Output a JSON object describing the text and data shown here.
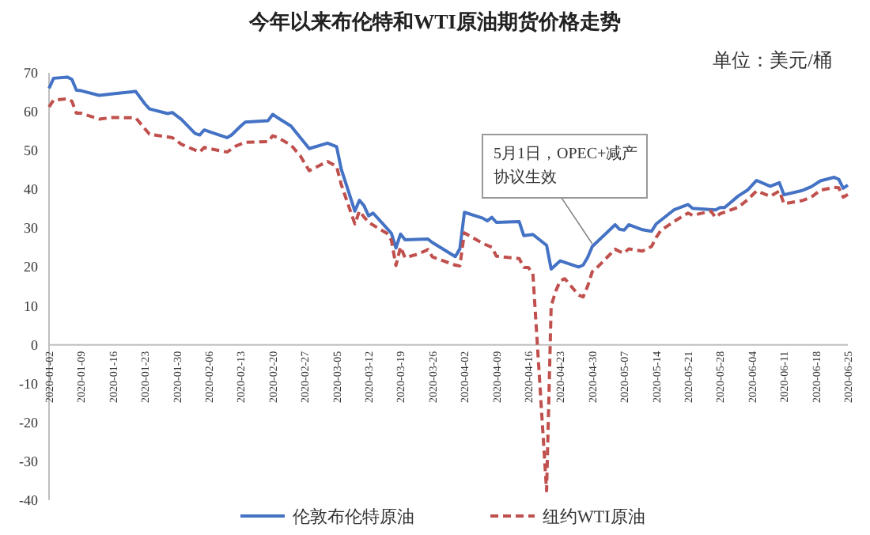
{
  "chart_data": {
    "type": "line",
    "title": "今年以来布伦特和WTI原油期货价格走势",
    "annotations": [
      "单位：美元/桶",
      {
        "text": "5月1日，OPEC+减产协议生效",
        "x": "2020-04-30",
        "y": 26
      }
    ],
    "xlim": [
      "2020-01-02",
      "2020-06-25"
    ],
    "xticks": [
      "2020-01-02",
      "2020-01-09",
      "2020-01-16",
      "2020-01-23",
      "2020-01-30",
      "2020-02-06",
      "2020-02-13",
      "2020-02-20",
      "2020-02-27",
      "2020-03-05",
      "2020-03-12",
      "2020-03-19",
      "2020-03-26",
      "2020-04-02",
      "2020-04-09",
      "2020-04-16",
      "2020-04-23",
      "2020-04-30",
      "2020-05-07",
      "2020-05-14",
      "2020-05-21",
      "2020-05-28",
      "2020-06-04",
      "2020-06-11",
      "2020-06-18",
      "2020-06-25"
    ],
    "ylim": [
      -40,
      70
    ],
    "yticks": [
      -40,
      -30,
      -20,
      -10,
      0,
      10,
      20,
      30,
      40,
      50,
      60,
      70
    ],
    "grid": false,
    "legend": "bottom",
    "series": [
      {
        "name": "伦敦布伦特原油",
        "color": "#4472c4",
        "line_style": "solid",
        "x": [
          "2020-01-02",
          "2020-01-03",
          "2020-01-06",
          "2020-01-07",
          "2020-01-08",
          "2020-01-09",
          "2020-01-13",
          "2020-01-16",
          "2020-01-21",
          "2020-01-23",
          "2020-01-24",
          "2020-01-28",
          "2020-01-29",
          "2020-01-31",
          "2020-02-03",
          "2020-02-04",
          "2020-02-05",
          "2020-02-07",
          "2020-02-10",
          "2020-02-11",
          "2020-02-13",
          "2020-02-14",
          "2020-02-19",
          "2020-02-20",
          "2020-02-21",
          "2020-02-24",
          "2020-02-26",
          "2020-02-28",
          "2020-03-03",
          "2020-03-05",
          "2020-03-06",
          "2020-03-09",
          "2020-03-10",
          "2020-03-11",
          "2020-03-12",
          "2020-03-13",
          "2020-03-16",
          "2020-03-17",
          "2020-03-18",
          "2020-03-19",
          "2020-03-20",
          "2020-03-25",
          "2020-03-26",
          "2020-03-31",
          "2020-04-01",
          "2020-04-02",
          "2020-04-06",
          "2020-04-07",
          "2020-04-08",
          "2020-04-09",
          "2020-04-14",
          "2020-04-15",
          "2020-04-17",
          "2020-04-20",
          "2020-04-21",
          "2020-04-23",
          "2020-04-27",
          "2020-04-28",
          "2020-04-29",
          "2020-04-30",
          "2020-05-01",
          "2020-05-05",
          "2020-05-06",
          "2020-05-07",
          "2020-05-08",
          "2020-05-11",
          "2020-05-13",
          "2020-05-14",
          "2020-05-18",
          "2020-05-21",
          "2020-05-22",
          "2020-05-27",
          "2020-05-28",
          "2020-05-29",
          "2020-06-01",
          "2020-06-03",
          "2020-06-05",
          "2020-06-08",
          "2020-06-10",
          "2020-06-11",
          "2020-06-15",
          "2020-06-17",
          "2020-06-19",
          "2020-06-22",
          "2020-06-23",
          "2020-06-24",
          "2020-06-25"
        ],
        "values": [
          66,
          68.6,
          68.9,
          68.3,
          65.5,
          65.4,
          64.2,
          64.6,
          65.2,
          62,
          60.7,
          59.5,
          59.8,
          58,
          54.4,
          54,
          55.3,
          54.5,
          53.3,
          54,
          56.3,
          57.3,
          57.7,
          59.3,
          58.5,
          56.3,
          53.4,
          50.5,
          51.9,
          51,
          45.3,
          34.4,
          37.2,
          35.8,
          33.2,
          33.9,
          30,
          28.7,
          24.9,
          28.5,
          27,
          27.2,
          26.3,
          22.7,
          24.7,
          34.1,
          32.6,
          31.9,
          32.8,
          31.5,
          31.7,
          28.1,
          28.4,
          25.6,
          19.5,
          21.6,
          20,
          20.5,
          22.5,
          25.3,
          26.4,
          30.9,
          29.7,
          29.5,
          30.9,
          29.6,
          29.2,
          31.1,
          34.8,
          36.1,
          35.1,
          34.7,
          35.3,
          35.3,
          38.3,
          39.8,
          42.3,
          40.8,
          41.7,
          38.6,
          39.7,
          40.7,
          42.2,
          43.1,
          42.6,
          40.3,
          41.1
        ]
      },
      {
        "name": "纽约WTI原油",
        "color": "#c0504d",
        "line_style": "dashed",
        "x": [
          "2020-01-02",
          "2020-01-03",
          "2020-01-06",
          "2020-01-07",
          "2020-01-08",
          "2020-01-09",
          "2020-01-13",
          "2020-01-16",
          "2020-01-21",
          "2020-01-23",
          "2020-01-24",
          "2020-01-28",
          "2020-01-29",
          "2020-01-31",
          "2020-02-03",
          "2020-02-04",
          "2020-02-05",
          "2020-02-07",
          "2020-02-10",
          "2020-02-12",
          "2020-02-14",
          "2020-02-19",
          "2020-02-20",
          "2020-02-21",
          "2020-02-24",
          "2020-02-26",
          "2020-02-28",
          "2020-03-03",
          "2020-03-05",
          "2020-03-06",
          "2020-03-09",
          "2020-03-10",
          "2020-03-11",
          "2020-03-12",
          "2020-03-16",
          "2020-03-17",
          "2020-03-18",
          "2020-03-19",
          "2020-03-20",
          "2020-03-23",
          "2020-03-25",
          "2020-03-26",
          "2020-03-31",
          "2020-04-01",
          "2020-04-02",
          "2020-04-06",
          "2020-04-08",
          "2020-04-09",
          "2020-04-14",
          "2020-04-15",
          "2020-04-16",
          "2020-04-17",
          "2020-04-20",
          "2020-04-21",
          "2020-04-22",
          "2020-04-23",
          "2020-04-24",
          "2020-04-27",
          "2020-04-28",
          "2020-04-29",
          "2020-04-30",
          "2020-05-01",
          "2020-05-05",
          "2020-05-06",
          "2020-05-07",
          "2020-05-08",
          "2020-05-11",
          "2020-05-13",
          "2020-05-14",
          "2020-05-15",
          "2020-05-18",
          "2020-05-21",
          "2020-05-22",
          "2020-05-26",
          "2020-05-27",
          "2020-05-28",
          "2020-06-01",
          "2020-06-03",
          "2020-06-05",
          "2020-06-08",
          "2020-06-10",
          "2020-06-11",
          "2020-06-15",
          "2020-06-17",
          "2020-06-19",
          "2020-06-22",
          "2020-06-23",
          "2020-06-24",
          "2020-06-25"
        ],
        "values": [
          61.2,
          63,
          63.3,
          62.7,
          59.6,
          59.6,
          58.1,
          58.5,
          58.4,
          55.6,
          54.2,
          53.5,
          53.3,
          51.6,
          50.1,
          49.6,
          50.8,
          50.3,
          49.6,
          51.2,
          52.1,
          52.3,
          53.8,
          53.4,
          51.4,
          48.7,
          44.8,
          47.2,
          45.9,
          41.3,
          31.1,
          34.4,
          32.9,
          31.5,
          28.7,
          26.9,
          20.4,
          25.2,
          22.4,
          23.4,
          24.5,
          22.6,
          20.5,
          20.3,
          28.8,
          26.1,
          25.1,
          22.8,
          22.2,
          19.9,
          19.9,
          18.3,
          -37.6,
          10,
          13.8,
          16.5,
          17,
          12.8,
          12.3,
          15.1,
          18.8,
          19.8,
          24.6,
          24,
          23.6,
          24.7,
          24.1,
          25.3,
          27.6,
          29.4,
          31.8,
          33.9,
          33.3,
          34.4,
          32.8,
          33.7,
          35.4,
          37.3,
          39.6,
          38.2,
          39.6,
          36.3,
          37.1,
          38,
          39.8,
          40.5,
          40.4,
          38,
          38.7
        ]
      }
    ]
  }
}
